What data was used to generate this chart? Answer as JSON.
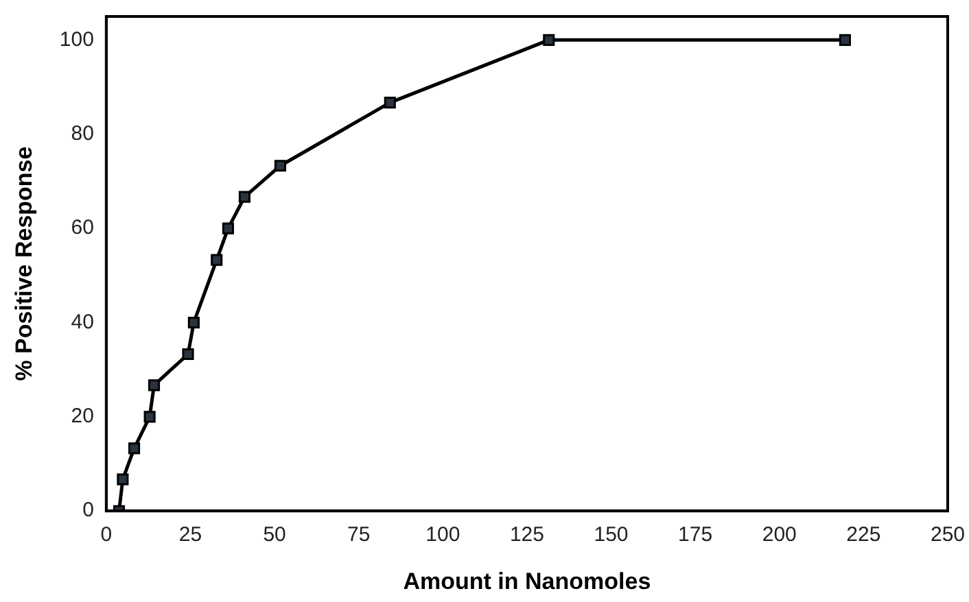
{
  "chart_data": {
    "type": "line",
    "xlabel": "Amount in Nanomoles",
    "ylabel": "% Positive Response",
    "x": [
      3.8,
      4.9,
      8.3,
      12.9,
      14.2,
      24.3,
      26,
      32.8,
      36.2,
      41.1,
      51.7,
      84.3,
      131.5,
      219.5
    ],
    "values": [
      0,
      6.7,
      13.3,
      20,
      26.7,
      33.3,
      40,
      53.3,
      60,
      66.7,
      73.3,
      86.7,
      100,
      100
    ],
    "color": "#000000",
    "marker": "square",
    "line_style": "solid",
    "xlim": [
      0,
      250
    ],
    "xticks": [
      0,
      25,
      50,
      75,
      100,
      125,
      150,
      175,
      200,
      225,
      250
    ],
    "ylim": [
      0,
      105
    ],
    "yticks": [
      0,
      20,
      40,
      60,
      80,
      100
    ],
    "grid": false,
    "legend": false
  }
}
